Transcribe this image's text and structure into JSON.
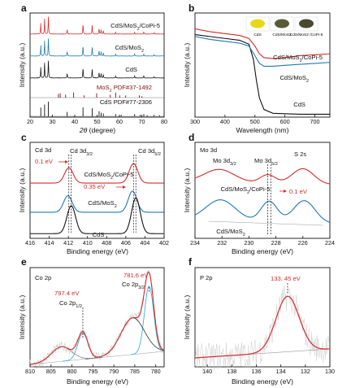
{
  "chart_data": [
    {
      "panel": "a",
      "type": "line",
      "xlabel_main": "2θ",
      "xlabel_unit": " (degree)",
      "ylabel": "Intensity (a.u.)",
      "xlim": [
        20,
        80
      ],
      "xticks": [
        20,
        30,
        40,
        50,
        60,
        70,
        80
      ],
      "series": [
        {
          "name": "CdS/MoS",
          "sub": "2",
          "tail": "/CoPi-5",
          "color": "#d42a2a",
          "peaks": [
            [
              24.8,
              0.55
            ],
            [
              26.5,
              0.8
            ],
            [
              28.2,
              1.0
            ],
            [
              36.6,
              0.25
            ],
            [
              43.7,
              0.55
            ],
            [
              47.8,
              0.5
            ],
            [
              50.9,
              0.3
            ],
            [
              51.8,
              0.22
            ],
            [
              52.8,
              0.18
            ],
            [
              58.3,
              0.1
            ],
            [
              66.8,
              0.1
            ],
            [
              70.9,
              0.12
            ],
            [
              75.5,
              0.08
            ]
          ]
        },
        {
          "name": "CdS/MoS",
          "sub": "2",
          "tail": "",
          "color": "#1f77b4",
          "peaks": [
            [
              24.8,
              0.55
            ],
            [
              26.5,
              0.8
            ],
            [
              28.2,
              1.0
            ],
            [
              36.6,
              0.25
            ],
            [
              43.7,
              0.55
            ],
            [
              47.8,
              0.5
            ],
            [
              50.9,
              0.3
            ],
            [
              51.8,
              0.22
            ],
            [
              52.8,
              0.18
            ],
            [
              58.3,
              0.1
            ],
            [
              66.8,
              0.1
            ],
            [
              70.9,
              0.12
            ],
            [
              75.5,
              0.08
            ]
          ]
        },
        {
          "name": "CdS",
          "sub": "",
          "tail": "",
          "color": "#111111",
          "peaks": [
            [
              24.8,
              0.55
            ],
            [
              26.5,
              0.8
            ],
            [
              28.2,
              1.0
            ],
            [
              36.6,
              0.25
            ],
            [
              43.7,
              0.55
            ],
            [
              47.8,
              0.5
            ],
            [
              50.9,
              0.3
            ],
            [
              51.8,
              0.22
            ],
            [
              52.8,
              0.18
            ],
            [
              58.3,
              0.1
            ],
            [
              66.8,
              0.1
            ],
            [
              70.9,
              0.12
            ],
            [
              75.5,
              0.08
            ]
          ]
        }
      ],
      "references": [
        {
          "name": "MoS",
          "sub": "2",
          "tail": " PDF#37-1492",
          "color": "#7a1414",
          "sticks": [
            [
              14.4,
              1.0
            ],
            [
              32.7,
              0.25
            ],
            [
              33.5,
              0.3
            ],
            [
              35.9,
              0.2
            ],
            [
              39.5,
              0.35
            ],
            [
              44.2,
              0.15
            ],
            [
              49.8,
              0.3
            ],
            [
              55.9,
              0.2
            ],
            [
              58.3,
              0.35
            ],
            [
              60.1,
              0.15
            ],
            [
              62.8,
              0.15
            ],
            [
              68.9,
              0.15
            ],
            [
              70.1,
              0.1
            ]
          ]
        },
        {
          "name": "CdS PDF#77-2306",
          "sub": "",
          "tail": "",
          "color": "#111111",
          "sticks": [
            [
              24.8,
              0.6
            ],
            [
              26.5,
              0.8
            ],
            [
              28.2,
              1.0
            ],
            [
              36.6,
              0.3
            ],
            [
              43.7,
              0.6
            ],
            [
              47.8,
              0.55
            ],
            [
              50.9,
              0.35
            ],
            [
              51.8,
              0.25
            ],
            [
              52.8,
              0.2
            ],
            [
              58.3,
              0.15
            ],
            [
              60.8,
              0.1
            ],
            [
              66.8,
              0.15
            ],
            [
              69.3,
              0.1
            ],
            [
              70.9,
              0.15
            ],
            [
              72.4,
              0.08
            ],
            [
              75.5,
              0.1
            ],
            [
              77.9,
              0.08
            ]
          ]
        }
      ]
    },
    {
      "panel": "b",
      "type": "line",
      "xlabel": "Wavelength (nm)",
      "ylabel": "Intensity (a.u.)",
      "xlim": [
        300,
        750
      ],
      "xticks": [
        300,
        400,
        500,
        600,
        700
      ],
      "series": [
        {
          "name": "CdS/MoS",
          "sub": "2",
          "tail": "/CoPi-5",
          "color": "#d42a2a",
          "points": [
            [
              300,
              0.92
            ],
            [
              350,
              0.89
            ],
            [
              400,
              0.87
            ],
            [
              450,
              0.85
            ],
            [
              480,
              0.82
            ],
            [
              500,
              0.74
            ],
            [
              515,
              0.66
            ],
            [
              530,
              0.62
            ],
            [
              560,
              0.61
            ],
            [
              600,
              0.62
            ],
            [
              650,
              0.64
            ],
            [
              700,
              0.65
            ],
            [
              750,
              0.66
            ]
          ]
        },
        {
          "name": "CdS",
          "sub": "",
          "tail": "",
          "color": "#111111",
          "points": [
            [
              300,
              0.86
            ],
            [
              350,
              0.84
            ],
            [
              400,
              0.82
            ],
            [
              450,
              0.8
            ],
            [
              480,
              0.76
            ],
            [
              495,
              0.6
            ],
            [
              505,
              0.38
            ],
            [
              515,
              0.2
            ],
            [
              530,
              0.08
            ],
            [
              560,
              0.04
            ],
            [
              650,
              0.03
            ],
            [
              750,
              0.03
            ]
          ]
        },
        {
          "name": "CdS/MoS",
          "sub": "2",
          "tail": "",
          "color": "#1f77b4",
          "points": [
            [
              300,
              0.84
            ],
            [
              350,
              0.81
            ],
            [
              400,
              0.79
            ],
            [
              450,
              0.77
            ],
            [
              480,
              0.74
            ],
            [
              500,
              0.64
            ],
            [
              515,
              0.56
            ],
            [
              530,
              0.53
            ],
            [
              560,
              0.53
            ],
            [
              600,
              0.54
            ],
            [
              650,
              0.55
            ],
            [
              700,
              0.56
            ],
            [
              750,
              0.57
            ]
          ]
        }
      ],
      "insets": [
        {
          "label": "CdS",
          "color": "#e8d81a"
        },
        {
          "label": "CdS/MoS2",
          "color": "#5a5a3a"
        },
        {
          "label": "CdS/MoS2 /CoPi-5",
          "color": "#4a4a30"
        }
      ]
    },
    {
      "panel": "c",
      "type": "line",
      "title": "Cd 3d",
      "xlabel": "Binding energy (eV)",
      "ylabel": "Intensity (a.u.)",
      "xlim": [
        416,
        402
      ],
      "xticks": [
        416,
        414,
        412,
        410,
        408,
        406,
        404,
        402
      ],
      "series": [
        {
          "name": "CdS/MoS",
          "sub": "2",
          "tail": "/CoPi-5",
          "color": "#d42a2a",
          "p1": 411.95,
          "p2": 405.2,
          "amp": 0.45
        },
        {
          "name": "CdS/MoS",
          "sub": "2",
          "tail": "",
          "color": "#1f77b4",
          "p1": 412.05,
          "p2": 405.3,
          "amp": 0.5
        },
        {
          "name": "CdS",
          "sub": "",
          "tail": "",
          "color": "#111111",
          "p1": 411.7,
          "p2": 404.95,
          "amp": 0.8
        }
      ],
      "annotations": {
        "peak1": "Cd 3d",
        "peak1_sub": "3/2",
        "peak2": "Cd 3d",
        "peak2_sub": "5/2",
        "shift1": "0.1 eV",
        "shift2": "0.35 eV"
      }
    },
    {
      "panel": "d",
      "type": "line",
      "title": "Mo 3d",
      "xlabel": "Binding energy (eV)",
      "ylabel": "Intensity (a.u.)",
      "xlim": [
        234,
        224
      ],
      "xticks": [
        234,
        232,
        230,
        228,
        226,
        224
      ],
      "series": [
        {
          "name": "CdS/MoS",
          "sub": "2",
          "tail": "/CoPi-5",
          "color": "#d42a2a",
          "peaks": [
            [
              232.2,
              0.45,
              1.1
            ],
            [
              228.6,
              0.3,
              0.55
            ],
            [
              226.0,
              0.55,
              0.8
            ]
          ]
        },
        {
          "name": "CdS/MoS",
          "sub": "2",
          "tail": "",
          "color": "#1f77b4",
          "peaks": [
            [
              232.1,
              0.6,
              1.1
            ],
            [
              228.5,
              0.6,
              0.6
            ],
            [
              225.9,
              0.65,
              0.8
            ]
          ]
        }
      ],
      "annotations": {
        "peak1": "Mo 3d",
        "peak1_sub": "3/2",
        "peak2": "Mo 3d",
        "peak2_sub": "5/2",
        "peak3": "S 2s",
        "shift": "0.1 eV"
      }
    },
    {
      "panel": "e",
      "type": "line",
      "title": "Co 2p",
      "xlabel": "Binding energy (eV)",
      "ylabel": "Intensity (a.u.)",
      "xlim": [
        810,
        778
      ],
      "xticks": [
        810,
        805,
        800,
        795,
        790,
        785,
        780
      ],
      "components": [
        {
          "center": 781.6,
          "amp": 0.82,
          "width": 1.1,
          "color": "#2aa7c9"
        },
        {
          "center": 785.5,
          "amp": 0.45,
          "width": 2.8,
          "color": "#333333"
        },
        {
          "center": 797.4,
          "amp": 0.32,
          "width": 1.2,
          "color": "#2aa7c9"
        },
        {
          "center": 802.5,
          "amp": 0.18,
          "width": 2.4,
          "color": "#888888"
        }
      ],
      "annotations": {
        "peak1_value": "781.6 eV",
        "peak1_label": "Co 2p",
        "peak1_sub": "3/2",
        "peak2_value": "797.4 eV",
        "peak2_label": "Co 2p",
        "peak2_sub": "1/2"
      }
    },
    {
      "panel": "f",
      "type": "line",
      "title": "P 2p",
      "xlabel": "Binding energy (eV)",
      "ylabel": "Intensity (a.u.)",
      "xlim": [
        141,
        130
      ],
      "xticks": [
        140,
        138,
        136,
        134,
        132,
        130
      ],
      "fit": {
        "center": 133.45,
        "amp": 0.62,
        "width": 0.95,
        "color": "#d42a2a"
      },
      "annotations": {
        "peak_value": "133. 45 eV"
      }
    }
  ]
}
